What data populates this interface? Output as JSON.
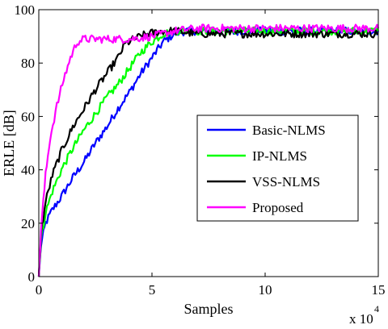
{
  "chart_data": {
    "type": "line",
    "xlabel": "Samples",
    "ylabel": "ERLE [dB]",
    "x_multiplier": "x 10",
    "x_multiplier_exponent": "4",
    "xlim": [
      0,
      15
    ],
    "ylim": [
      0,
      100
    ],
    "x_ticks": [
      0,
      5,
      10,
      15
    ],
    "y_ticks": [
      0,
      20,
      40,
      60,
      80,
      100
    ],
    "x_tick_labels": [
      "0",
      "5",
      "10",
      "15"
    ],
    "y_tick_labels": [
      "0",
      "20",
      "40",
      "60",
      "80",
      "100"
    ],
    "grid": false,
    "legend_position": "lower-right",
    "x_unit_note": "x values in units of 10^4 samples",
    "series": [
      {
        "name": "Basic-NLMS",
        "color": "#0000ff",
        "x": [
          0,
          0.1,
          0.3,
          0.6,
          1,
          1.5,
          2,
          2.5,
          3,
          3.5,
          4,
          4.5,
          5,
          5.5,
          6,
          6.5,
          7,
          8,
          9,
          10,
          11,
          12,
          13,
          14,
          15
        ],
        "y": [
          0,
          12,
          20,
          25,
          30,
          37,
          43,
          50,
          56,
          63,
          69,
          76,
          82,
          88,
          91,
          92,
          92,
          92,
          92,
          92,
          92,
          92,
          92,
          92,
          92
        ]
      },
      {
        "name": "IP-NLMS",
        "color": "#00ff00",
        "x": [
          0,
          0.1,
          0.3,
          0.6,
          1,
          1.5,
          2,
          2.5,
          3,
          3.5,
          4,
          4.5,
          5,
          5.5,
          6,
          6.5,
          7,
          8,
          9,
          10,
          11,
          12,
          13,
          14,
          15
        ],
        "y": [
          0,
          14,
          24,
          32,
          40,
          48,
          55,
          61,
          67,
          72,
          78,
          84,
          88,
          91,
          92,
          92,
          92,
          92,
          92,
          92,
          92,
          92,
          92,
          92,
          92
        ]
      },
      {
        "name": "VSS-NLMS",
        "color": "#000000",
        "x": [
          0,
          0.1,
          0.3,
          0.6,
          1,
          1.5,
          2,
          2.5,
          3,
          3.5,
          3.8,
          4.2,
          4.8,
          5.5,
          6,
          7,
          8,
          9,
          10,
          11,
          12,
          13,
          14,
          15
        ],
        "y": [
          0,
          16,
          28,
          38,
          47,
          56,
          63,
          70,
          76,
          82,
          87,
          89,
          91,
          92,
          92,
          91,
          91,
          91,
          91,
          91,
          91,
          91,
          91,
          91
        ]
      },
      {
        "name": "Proposed",
        "color": "#ff00ff",
        "x": [
          0,
          0.1,
          0.3,
          0.5,
          0.8,
          1.1,
          1.4,
          1.7,
          2,
          2.5,
          3,
          4,
          5,
          6,
          7,
          8,
          9,
          10,
          11,
          12,
          13,
          14,
          15
        ],
        "y": [
          0,
          18,
          38,
          52,
          64,
          74,
          82,
          88,
          89,
          89,
          89,
          89,
          90,
          92,
          93,
          93,
          93,
          93,
          93,
          93,
          93,
          93,
          93
        ]
      }
    ]
  }
}
